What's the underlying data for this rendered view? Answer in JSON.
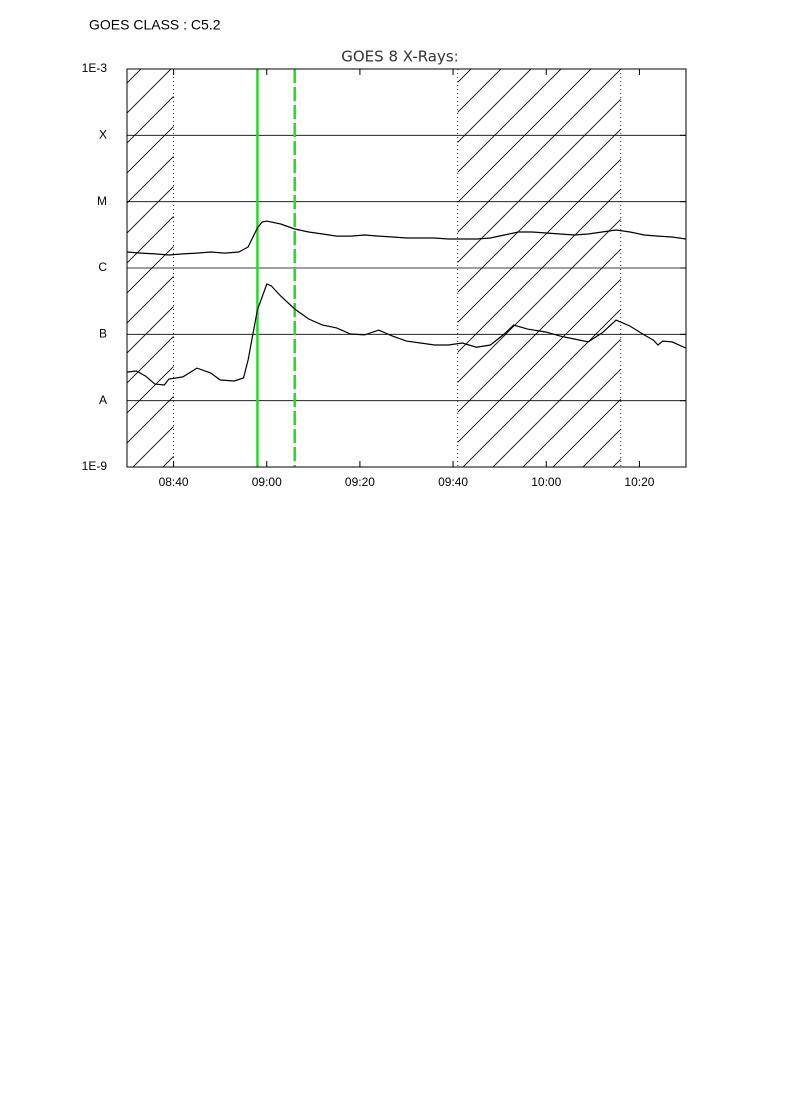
{
  "chart_data": {
    "type": "line",
    "header": "GOES CLASS : C5.2",
    "title": "GOES 8 X-Rays:",
    "log_y": true,
    "grid": true,
    "ylim": [
      1e-09,
      0.001
    ],
    "yticks": [
      {
        "value": 1e-09,
        "label": "1E-9"
      },
      {
        "value": 1e-08,
        "label": "A"
      },
      {
        "value": 1e-07,
        "label": "B"
      },
      {
        "value": 1e-06,
        "label": "C"
      },
      {
        "value": 1e-05,
        "label": "M"
      },
      {
        "value": 0.0001,
        "label": "X"
      },
      {
        "value": 0.001,
        "label": "1E-3"
      }
    ],
    "xlim": [
      "08:30",
      "10:30"
    ],
    "xticks": [
      "08:40",
      "09:00",
      "09:20",
      "09:40",
      "10:00",
      "10:20"
    ],
    "shaded_regions": [
      [
        "08:30",
        "08:40"
      ],
      [
        "09:41",
        "10:16"
      ]
    ],
    "markers": [
      {
        "x": "08:58",
        "color": "#22dd22",
        "style": "solid"
      },
      {
        "x": "09:06",
        "color": "#22dd22",
        "style": "dashed"
      }
    ],
    "series": [
      {
        "color": "#000000",
        "x": [
          "08:30",
          "08:33",
          "08:36",
          "08:39",
          "08:42",
          "08:45",
          "08:48",
          "08:51",
          "08:54",
          "08:56",
          "08:58",
          "08:59",
          "09:00",
          "09:03",
          "09:06",
          "09:09",
          "09:12",
          "09:15",
          "09:18",
          "09:21",
          "09:24",
          "09:27",
          "09:30",
          "09:33",
          "09:36",
          "09:39",
          "09:42",
          "09:45",
          "09:48",
          "09:51",
          "09:54",
          "09:57",
          "10:00",
          "10:03",
          "10:06",
          "10:09",
          "10:12",
          "10:15",
          "10:18",
          "10:21",
          "10:24",
          "10:27",
          "10:30"
        ],
        "values": [
          1.74e-06,
          1.68e-06,
          1.63e-06,
          1.57e-06,
          1.63e-06,
          1.68e-06,
          1.74e-06,
          1.68e-06,
          1.74e-06,
          2.07e-06,
          4.01e-06,
          4.93e-06,
          5.1e-06,
          4.6e-06,
          3.87e-06,
          3.49e-06,
          3.25e-06,
          3.03e-06,
          3.03e-06,
          3.14e-06,
          3.03e-06,
          2.93e-06,
          2.83e-06,
          2.83e-06,
          2.83e-06,
          2.74e-06,
          2.74e-06,
          2.74e-06,
          2.83e-06,
          3.14e-06,
          3.49e-06,
          3.49e-06,
          3.37e-06,
          3.25e-06,
          3.14e-06,
          3.25e-06,
          3.49e-06,
          3.74e-06,
          3.49e-06,
          3.14e-06,
          3.03e-06,
          2.93e-06,
          2.74e-06
        ]
      },
      {
        "color": "#000000",
        "x": [
          "08:30",
          "08:32",
          "08:34",
          "08:36",
          "08:38",
          "08:39",
          "08:42",
          "08:45",
          "08:48",
          "08:50",
          "08:53",
          "08:55",
          "08:56",
          "08:58",
          "09:00",
          "09:01",
          "09:03",
          "09:06",
          "09:09",
          "09:12",
          "09:15",
          "09:18",
          "09:21",
          "09:24",
          "09:27",
          "09:30",
          "09:33",
          "09:36",
          "09:39",
          "09:42",
          "09:45",
          "09:48",
          "09:51",
          "09:53",
          "09:56",
          "10:00",
          "10:03",
          "10:06",
          "10:09",
          "10:12",
          "10:15",
          "10:18",
          "10:21",
          "10:23",
          "10:24",
          "10:25",
          "10:27",
          "10:30"
        ],
        "values": [
          2.7e-08,
          2.8e-08,
          2.35e-08,
          1.78e-08,
          1.72e-08,
          2.12e-08,
          2.28e-08,
          3.1e-08,
          2.61e-08,
          2.05e-08,
          1.98e-08,
          2.2e-08,
          4.1e-08,
          2.33e-07,
          5.74e-07,
          5.35e-07,
          3.79e-07,
          2.41e-07,
          1.7e-07,
          1.38e-07,
          1.25e-07,
          1.01e-07,
          9.8e-08,
          1.16e-07,
          9.4e-08,
          7.9e-08,
          7.4e-08,
          6.9e-08,
          6.9e-08,
          7.4e-08,
          6.4e-08,
          6.9e-08,
          1.01e-07,
          1.38e-07,
          1.2e-07,
          1.08e-07,
          9.4e-08,
          8.5e-08,
          7.7e-08,
          1.05e-07,
          1.64e-07,
          1.33e-07,
          9.8e-08,
          8.2e-08,
          6.9e-08,
          7.9e-08,
          7.7e-08,
          6.2e-08
        ]
      }
    ]
  }
}
